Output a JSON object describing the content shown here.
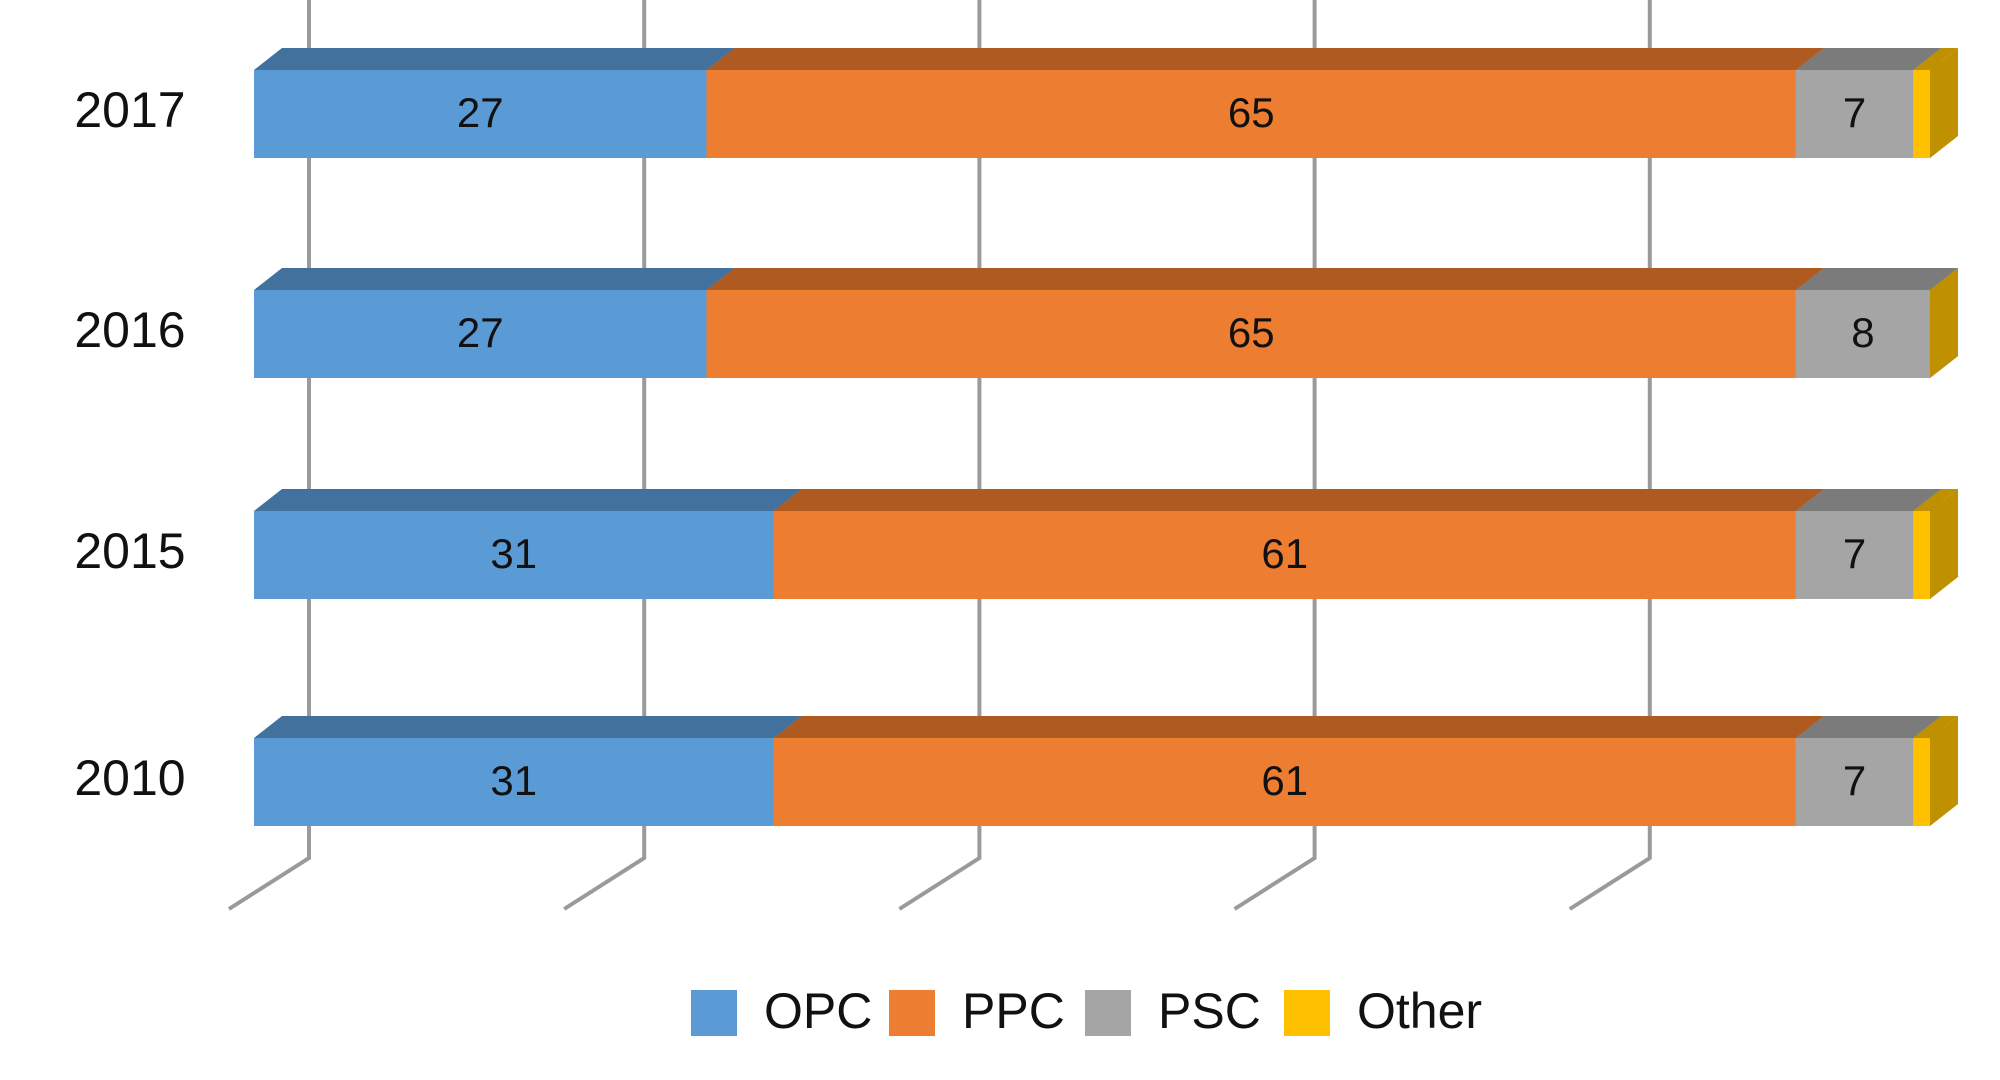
{
  "chart_data": {
    "type": "bar3d_stacked_horizontal",
    "categories": [
      "2017",
      "2016",
      "2015",
      "2010"
    ],
    "series": [
      {
        "name": "OPC",
        "color": "#5b9bd5",
        "top_color": "#41719c",
        "values": [
          27,
          27,
          31,
          31
        ]
      },
      {
        "name": "PPC",
        "color": "#ed7d31",
        "top_color": "#ae5a21",
        "values": [
          65,
          65,
          61,
          61
        ]
      },
      {
        "name": "PSC",
        "color": "#a5a5a5",
        "top_color": "#7b7b7b",
        "values": [
          7,
          8,
          7,
          7
        ]
      },
      {
        "name": "Other",
        "color": "#ffc000",
        "top_color": "#bf9000",
        "values": [
          1,
          0,
          1,
          1
        ]
      }
    ],
    "labeled_series": [
      0,
      1,
      2
    ],
    "xlim": [
      0,
      100
    ],
    "xticks": [
      0,
      20,
      40,
      60,
      80
    ],
    "grid": true,
    "legend": "bottom"
  }
}
